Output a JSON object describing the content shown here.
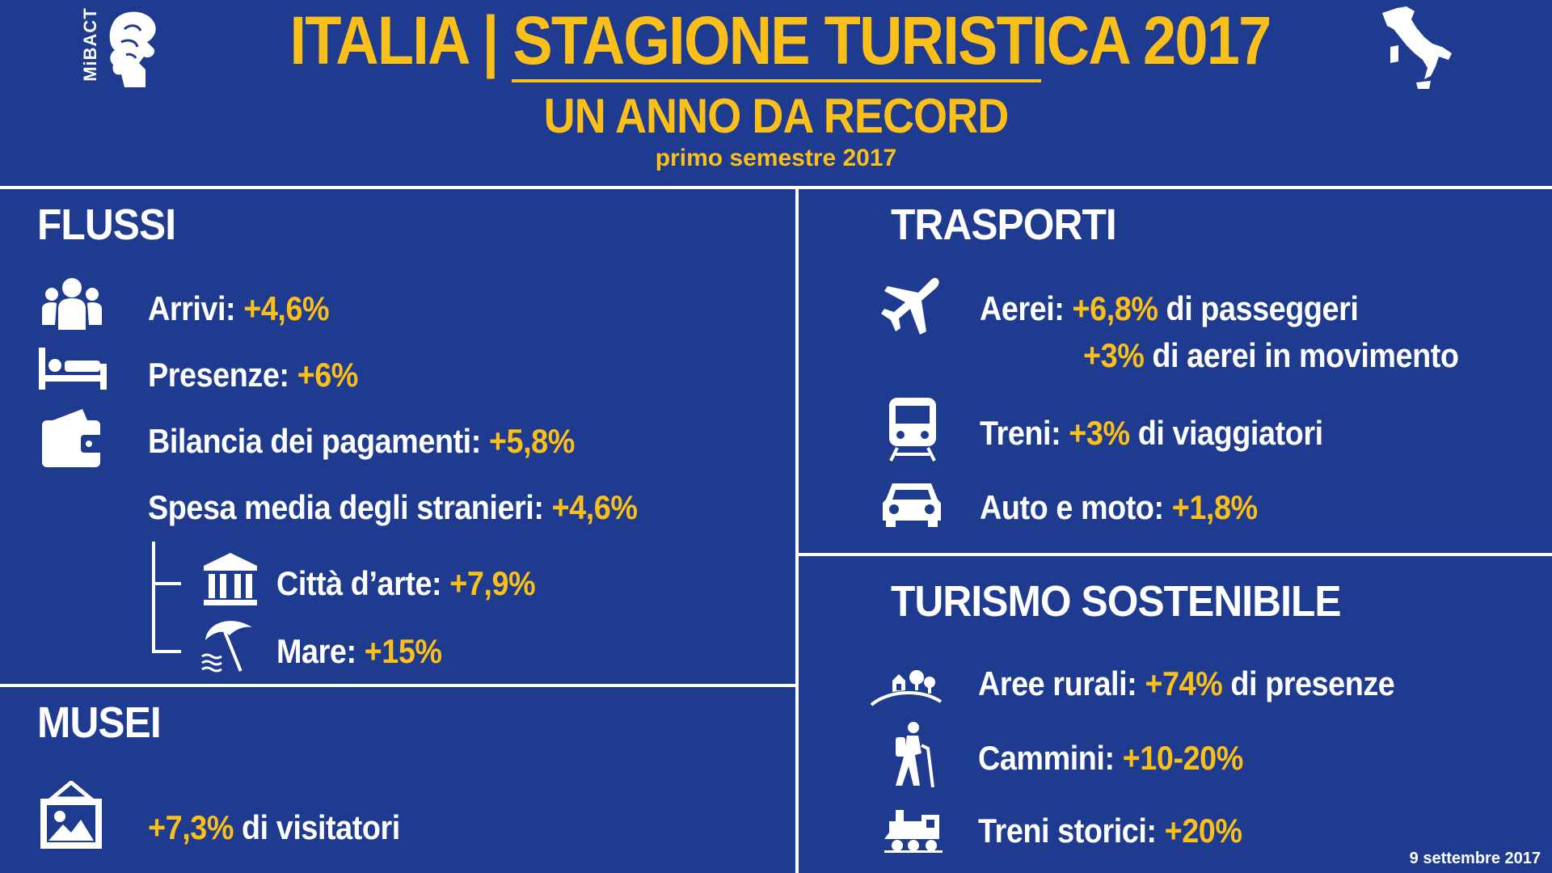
{
  "header": {
    "logo_text": "MiBACT",
    "title": "ITALIA | STAGIONE TURISTICA 2017",
    "subtitle": "UN ANNO DA RECORD",
    "period": "primo semestre 2017"
  },
  "colors": {
    "background": "#1e3b8f",
    "accent": "#fbbf19",
    "text": "#ffffff"
  },
  "flussi": {
    "heading": "FLUSSI",
    "arrivi_label": "Arrivi:",
    "arrivi_value": "+4,6%",
    "presenze_label": "Presenze:",
    "presenze_value": "+6%",
    "bilancia_label": "Bilancia dei pagamenti:",
    "bilancia_value": "+5,8%",
    "spesa_label": "Spesa media degli stranieri:",
    "spesa_value": "+4,6%",
    "citta_label": "Città d’arte:",
    "citta_value": "+7,9%",
    "mare_label": "Mare:",
    "mare_value": "+15%"
  },
  "musei": {
    "heading": "MUSEI",
    "value": "+7,3%",
    "label": "di visitatori"
  },
  "trasporti": {
    "heading": "TRASPORTI",
    "aerei_label": "Aerei:",
    "aerei_value": "+6,8%",
    "aerei_suffix": "di passeggeri",
    "aerei_value2": "+3%",
    "aerei_suffix2": "di aerei in movimento",
    "treni_label": "Treni:",
    "treni_value": "+3%",
    "treni_suffix": "di viaggiatori",
    "auto_label": "Auto e moto:",
    "auto_value": "+1,8%"
  },
  "sostenibile": {
    "heading": "TURISMO SOSTENIBILE",
    "rurali_label": "Aree rurali:",
    "rurali_value": "+74%",
    "rurali_suffix": "di presenze",
    "cammini_label": "Cammini:",
    "cammini_value": "+10-20%",
    "storici_label": "Treni storici:",
    "storici_value": "+20%"
  },
  "icons": [
    "mibact-logo-icon",
    "italy-map-icon",
    "people-icon",
    "bed-icon",
    "wallet-icon",
    "museum-icon",
    "beach-umbrella-icon",
    "picture-icon",
    "airplane-icon",
    "train-icon",
    "car-icon",
    "rural-landscape-icon",
    "hiker-icon",
    "steam-train-icon"
  ],
  "footer": {
    "date": "9 settembre 2017"
  }
}
